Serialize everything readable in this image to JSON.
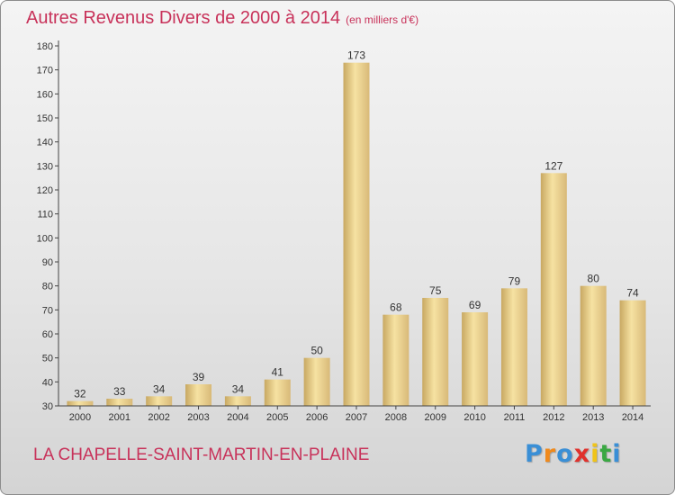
{
  "title": "Autres Revenus Divers de 2000 à 2014",
  "unit_note": "(en milliers d'€)",
  "location": "LA CHAPELLE-SAINT-MARTIN-EN-PLAINE",
  "logo": {
    "letters": [
      "P",
      "r",
      "o",
      "x",
      "i",
      "t",
      "i"
    ],
    "colors": [
      "#3a8fd6",
      "#f08a1c",
      "#3a8fd6",
      "#e0312c",
      "#f0c419",
      "#3aa843",
      "#3a8fd6"
    ]
  },
  "colors": {
    "title": "#c8325a",
    "bar_light": "#f6e2a2",
    "bar_dark": "#c8a862",
    "axis": "#444444"
  },
  "chart_data": {
    "type": "bar",
    "title": "Autres Revenus Divers de 2000 à 2014",
    "categories": [
      "2000",
      "2001",
      "2002",
      "2003",
      "2004",
      "2005",
      "2006",
      "2007",
      "2008",
      "2009",
      "2010",
      "2011",
      "2012",
      "2013",
      "2014"
    ],
    "values": [
      32,
      33,
      34,
      39,
      34,
      41,
      50,
      173,
      68,
      75,
      69,
      79,
      127,
      80,
      74
    ],
    "xlabel": "",
    "ylabel": "",
    "ylim": [
      30,
      180
    ],
    "yticks": [
      30,
      40,
      50,
      60,
      70,
      80,
      90,
      100,
      110,
      120,
      130,
      140,
      150,
      160,
      170,
      180
    ],
    "grid": false
  }
}
